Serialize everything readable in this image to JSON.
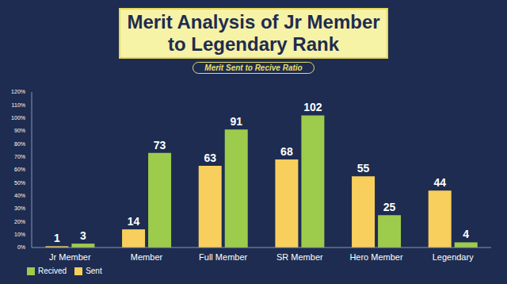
{
  "chart_data": {
    "type": "bar",
    "title": "Merit Analysis of Jr Member\nto Legendary Rank",
    "subtitle": "Merit Sent to Recive Ratio",
    "categories": [
      "Jr Member",
      "Member",
      "Full Member",
      "SR Member",
      "Hero Member",
      "Legendary"
    ],
    "series": [
      {
        "name": "Sent",
        "color": "#f8cf5c",
        "values": [
          1,
          14,
          63,
          68,
          55,
          44
        ]
      },
      {
        "name": "Recived",
        "color": "#9dcb4c",
        "values": [
          3,
          73,
          91,
          102,
          25,
          4
        ]
      }
    ],
    "ylim": [
      0,
      120
    ],
    "yticks": [
      {
        "value": 0,
        "label": "0%"
      },
      {
        "value": 10,
        "label": "10%"
      },
      {
        "value": 20,
        "label": "20%"
      },
      {
        "value": 30,
        "label": "30%"
      },
      {
        "value": 40,
        "label": "40%"
      },
      {
        "value": 50,
        "label": "50%"
      },
      {
        "value": 60,
        "label": "60%"
      },
      {
        "value": 70,
        "label": "70%"
      },
      {
        "value": 80,
        "label": "80%"
      },
      {
        "value": 90,
        "label": "90%"
      },
      {
        "value": 100,
        "label": "100%"
      },
      {
        "value": 110,
        "label": "110%"
      },
      {
        "value": 120,
        "label": "120%"
      }
    ],
    "grid": false,
    "legend": "bottom-left",
    "data_labels": true
  }
}
